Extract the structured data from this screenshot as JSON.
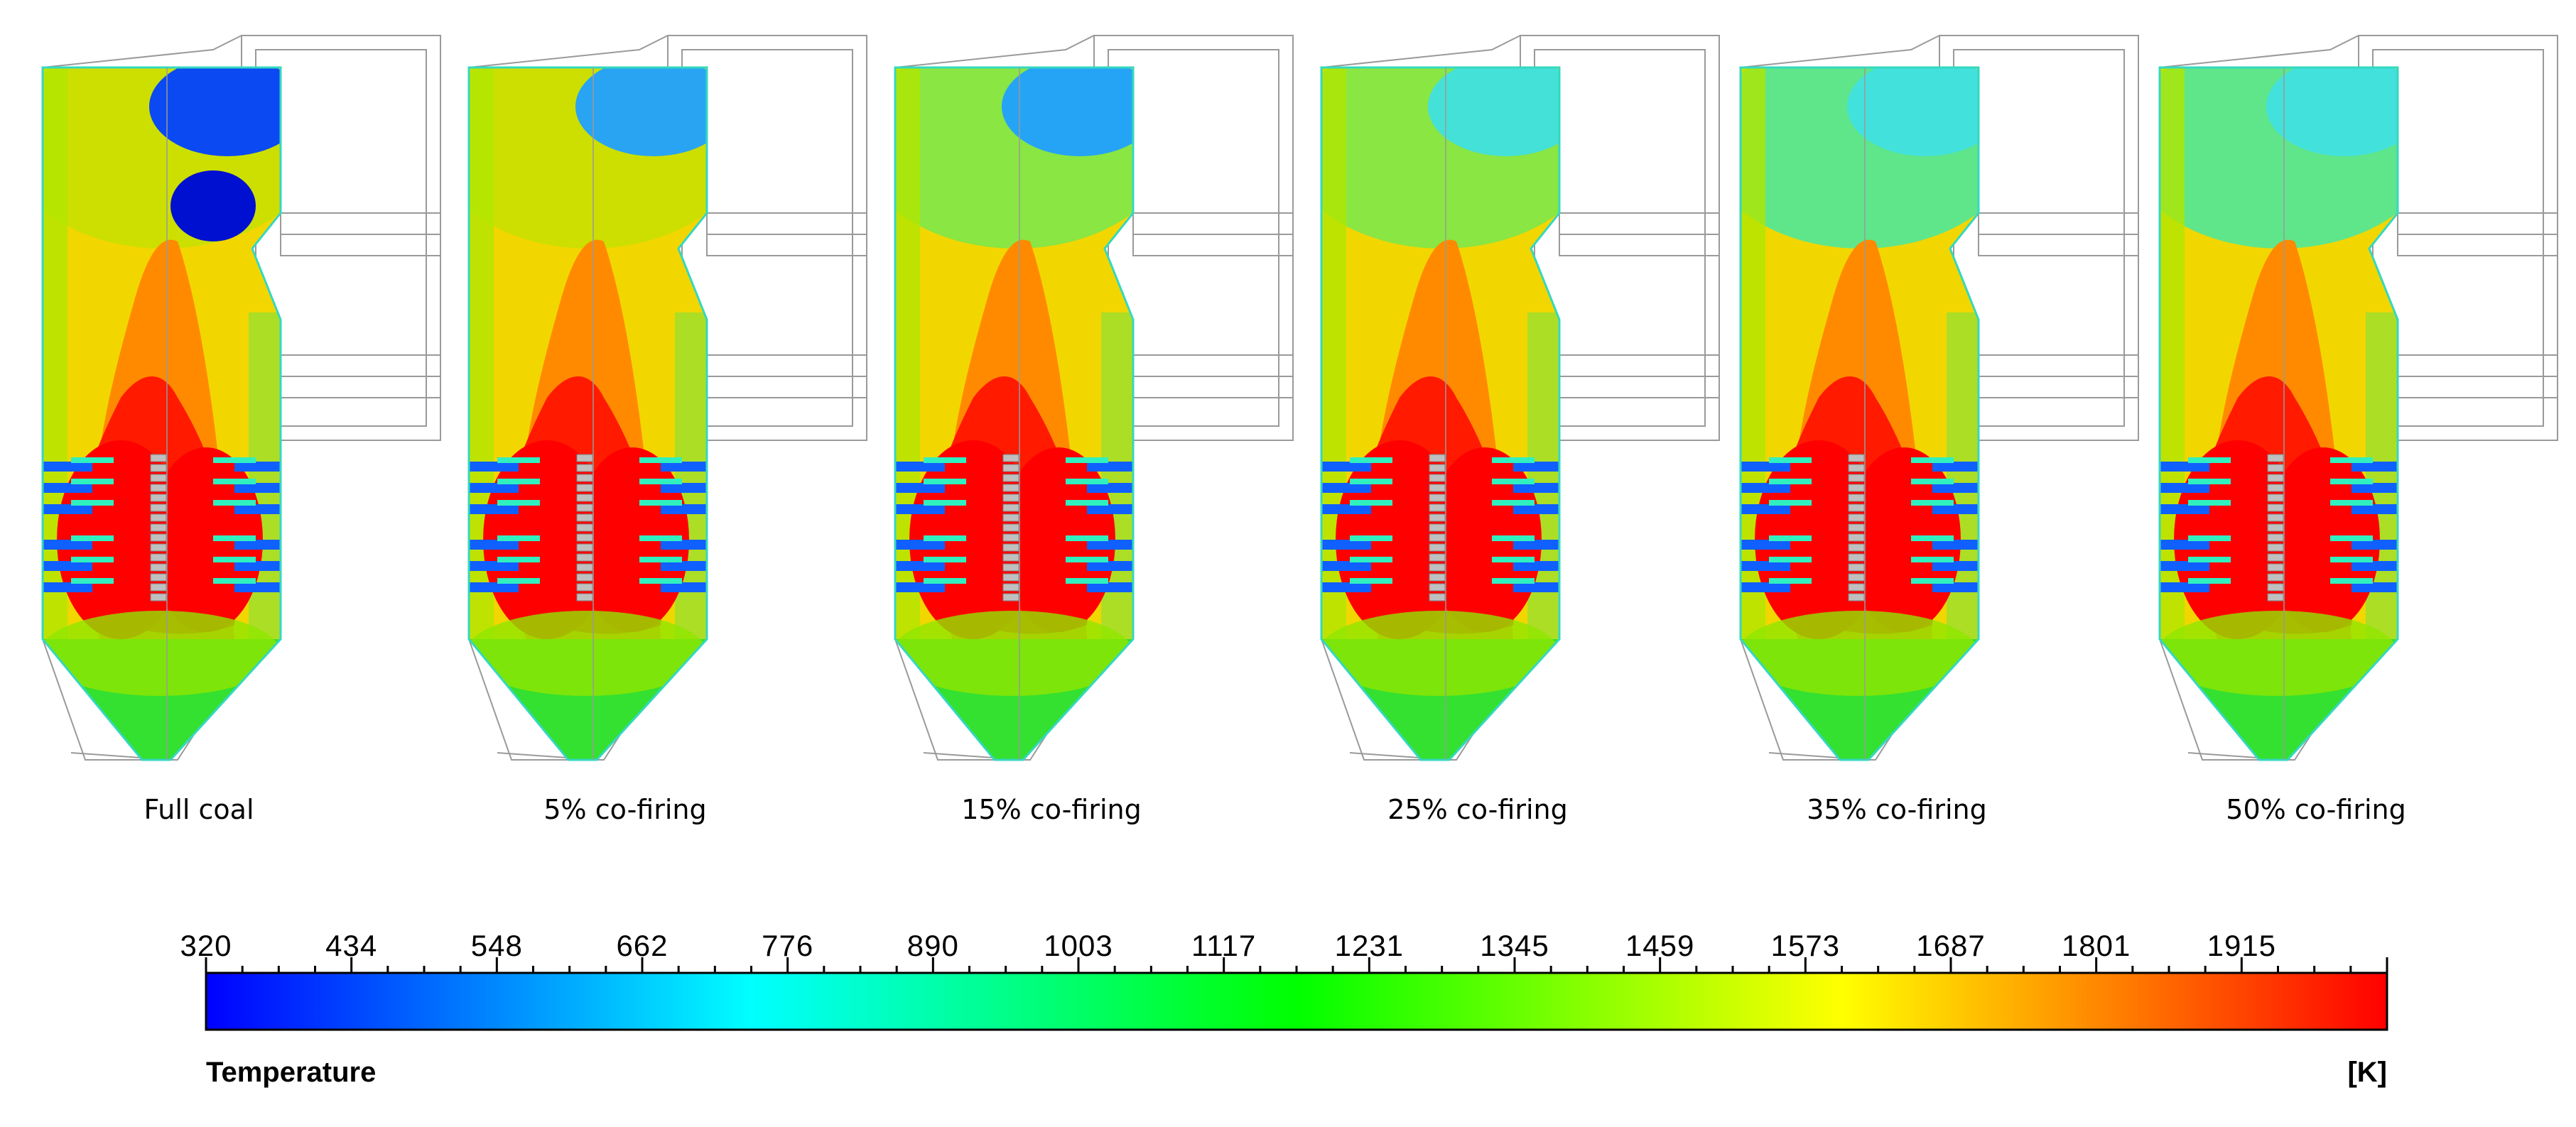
{
  "cases": [
    {
      "label": "Full coal",
      "level": 0
    },
    {
      "label": "5% co-firing",
      "level": 0.2
    },
    {
      "label": "15% co-firing",
      "level": 0.35
    },
    {
      "label": "25% co-firing",
      "level": 0.55
    },
    {
      "label": "35% co-firing",
      "level": 0.7
    },
    {
      "label": "50% co-firing",
      "level": 0.85
    }
  ],
  "colorbar": {
    "title": "Temperature",
    "unit": "[K]",
    "ticks": [
      "320",
      "434",
      "548",
      "662",
      "776",
      "890",
      "1003",
      "1117",
      "1231",
      "1345",
      "1459",
      "1573",
      "1687",
      "1801",
      "1915"
    ],
    "colors": [
      "#0000ff",
      "#0080ff",
      "#00ffff",
      "#00ff80",
      "#00ff00",
      "#80ff00",
      "#ffff00",
      "#ff8000",
      "#ff0000"
    ]
  }
}
